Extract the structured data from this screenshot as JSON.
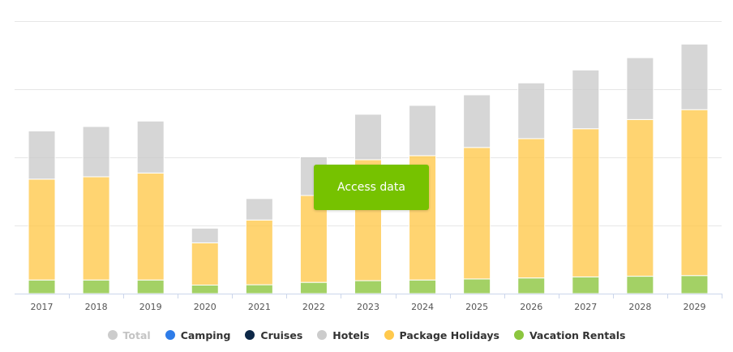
{
  "chart_data": {
    "type": "bar",
    "stacked": true,
    "categories": [
      "2017",
      "2018",
      "2019",
      "2020",
      "2021",
      "2022",
      "2023",
      "2024",
      "2025",
      "2026",
      "2027",
      "2028",
      "2029"
    ],
    "ylim": [
      0,
      8
    ],
    "y_gridlines": [
      0,
      2,
      4,
      6,
      8
    ],
    "y_tick_labels_visible": false,
    "series": [
      {
        "name": "Total",
        "visible": false,
        "color": "#cccccc",
        "values": [
          null,
          null,
          null,
          null,
          null,
          null,
          null,
          null,
          null,
          null,
          null,
          null,
          null
        ]
      },
      {
        "name": "Camping",
        "color": "#2e7ce8",
        "values": [
          0,
          0,
          0,
          0,
          0,
          0,
          0,
          0,
          0,
          0,
          0,
          0,
          0
        ]
      },
      {
        "name": "Cruises",
        "color": "#0d2847",
        "values": [
          0.01,
          0.01,
          0.01,
          0.005,
          0.005,
          0.01,
          0.01,
          0.01,
          0.01,
          0.01,
          0.01,
          0.01,
          0.01
        ]
      },
      {
        "name": "Hotels",
        "color": "#cccccc",
        "values": [
          1.42,
          1.48,
          1.53,
          0.44,
          0.64,
          1.14,
          1.34,
          1.48,
          1.55,
          1.64,
          1.73,
          1.82,
          1.93
        ]
      },
      {
        "name": "Package Holidays",
        "color": "#ffc94d",
        "values": [
          2.96,
          3.03,
          3.14,
          1.24,
          1.9,
          2.55,
          3.55,
          3.65,
          3.86,
          4.09,
          4.35,
          4.6,
          4.87
        ]
      },
      {
        "name": "Vacation Rentals",
        "color": "#8cc63f",
        "values": [
          0.4,
          0.4,
          0.4,
          0.25,
          0.26,
          0.33,
          0.38,
          0.4,
          0.43,
          0.46,
          0.49,
          0.51,
          0.53
        ]
      }
    ],
    "legend_position": "bottom",
    "grid": true
  },
  "cta": {
    "label": "Access data"
  }
}
